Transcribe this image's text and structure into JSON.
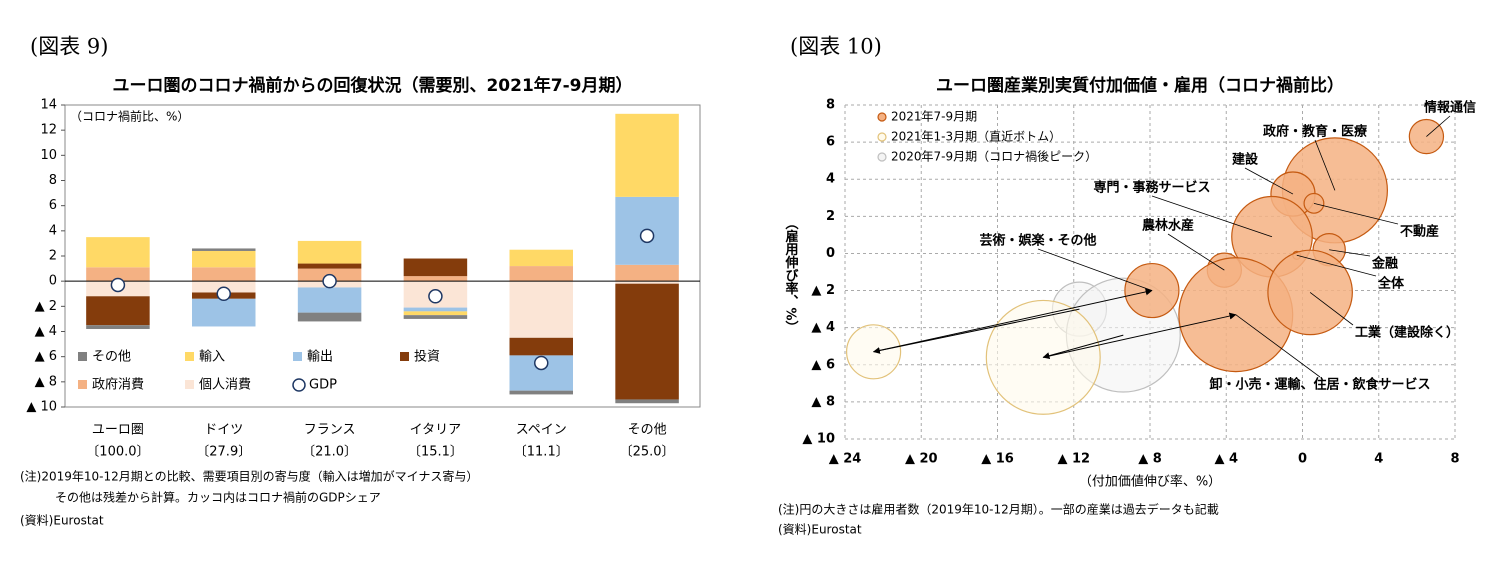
{
  "chart_data": [
    {
      "type": "bar",
      "stacked": true,
      "figure_label": "(図表 9)",
      "title": "ユーロ圏のコロナ禍前からの回復状況（需要別、2021年7-9月期）",
      "annotation": "（コロナ禍前比、%）",
      "categories": [
        "ユーロ圏",
        "ドイツ",
        "フランス",
        "イタリア",
        "スペイン",
        "その他"
      ],
      "gdp_shares": [
        "〔100.0〕",
        "〔27.9〕",
        "〔21.0〕",
        "〔15.1〕",
        "〔11.1〕",
        "〔25.0〕"
      ],
      "series": [
        {
          "name": "その他",
          "color": "#808080",
          "values": [
            -0.3,
            0.2,
            -0.7,
            -0.3,
            -0.3,
            -0.3
          ]
        },
        {
          "name": "輸入",
          "color": "#ffd966",
          "values": [
            2.4,
            1.3,
            1.8,
            -0.3,
            1.3,
            6.6
          ]
        },
        {
          "name": "輸出",
          "color": "#9dc3e6",
          "values": [
            0,
            -2.2,
            -2.0,
            -0.3,
            -2.8,
            5.4
          ]
        },
        {
          "name": "投資",
          "color": "#843c0c",
          "values": [
            -2.3,
            -0.5,
            0.4,
            1.4,
            -1.4,
            -9.2
          ]
        },
        {
          "name": "政府消費",
          "color": "#f4b183",
          "values": [
            1.1,
            1.1,
            1.0,
            0.4,
            1.2,
            1.3
          ]
        },
        {
          "name": "個人消費",
          "color": "#fbe5d6",
          "values": [
            -1.2,
            -0.9,
            -0.5,
            -2.1,
            -4.5,
            -0.2
          ]
        }
      ],
      "gdp": {
        "name": "GDP",
        "color": "#ffffff",
        "values": [
          -0.3,
          -1.0,
          0.0,
          -1.2,
          -6.5,
          3.6
        ]
      },
      "ylim": [
        -10,
        14
      ],
      "yticks": [
        {
          "value": -10,
          "label": "▲ 10"
        },
        {
          "value": -8,
          "label": "▲ 8"
        },
        {
          "value": -6,
          "label": "▲ 6"
        },
        {
          "value": -4,
          "label": "▲ 4"
        },
        {
          "value": -2,
          "label": "▲ 2"
        },
        0,
        2,
        4,
        6,
        8,
        10,
        12,
        14
      ],
      "grid": false,
      "notes": [
        "(注)2019年10-12月期との比較、需要項目別の寄与度（輸入は増加がマイナス寄与）",
        "その他は残差から計算。カッコ内はコロナ禍前のGDPシェア"
      ],
      "source": "(資料)Eurostat"
    },
    {
      "type": "bubble",
      "figure_label": "(図表 10)",
      "title": "ユーロ圏産業別実質付加価値・雇用（コロナ禍前比）",
      "xlabel": "（付加価値伸び率、%）",
      "ylabel": "（雇用伸び率、%）",
      "series": [
        {
          "name": "2021年7-9月期",
          "color": "#f4b183",
          "edgecolor": "#c55a11",
          "labels": [
            "情報通信",
            "政府・教育・医療",
            "建設",
            "不動産",
            "専門・事務サービス",
            "金融",
            "全体",
            "農林水産",
            "芸術・娯楽・その他",
            "卸・小売・運輸、住居・飲食サービス",
            "工業（建設除く）"
          ],
          "x": [
            6.5,
            1.7,
            -0.5,
            0.6,
            -1.6,
            1.4,
            -0.3,
            -4.1,
            -7.9,
            -3.5,
            0.4
          ],
          "y": [
            6.3,
            3.4,
            3.2,
            2.7,
            0.9,
            0.2,
            -0.1,
            -0.9,
            -2.0,
            -3.3,
            -2.1
          ],
          "sizes": [
            3.6,
            34,
            6,
            1.2,
            20,
            3.2,
            null,
            3.6,
            9,
            40,
            22
          ]
        },
        {
          "name": "2021年1-3月期（直近ボトム）",
          "color": "#fffaeb",
          "edgecolor": "#e2c27a",
          "x": [
            -22.5,
            -13.6
          ],
          "y": [
            -5.3,
            -5.6
          ],
          "sizes": [
            9,
            40
          ]
        },
        {
          "name": "2020年7-9月期（コロナ禍後ピーク）",
          "color": "#f4f4f4",
          "edgecolor": "#bfbfbf",
          "x": [
            -11.7,
            -9.4
          ],
          "y": [
            -3.0,
            -4.4
          ],
          "sizes": [
            9,
            40
          ]
        }
      ],
      "xlim": [
        -24,
        8
      ],
      "xticks": [
        {
          "value": -24,
          "label": "▲ 24"
        },
        {
          "value": -20,
          "label": "▲ 20"
        },
        {
          "value": -16,
          "label": "▲ 16"
        },
        {
          "value": -12,
          "label": "▲ 12"
        },
        {
          "value": -8,
          "label": "▲ 8"
        },
        {
          "value": -4,
          "label": "▲ 4"
        },
        0,
        4,
        8
      ],
      "ylim": [
        -10,
        8
      ],
      "yticks": [
        {
          "value": -10,
          "label": "▲ 10"
        },
        {
          "value": -8,
          "label": "▲ 8"
        },
        {
          "value": -6,
          "label": "▲ 6"
        },
        {
          "value": -4,
          "label": "▲ 4"
        },
        {
          "value": -2,
          "label": "▲ 2"
        },
        0,
        2,
        4,
        6,
        8
      ],
      "grid": true,
      "notes": [
        "(注)円の大きさは雇用者数（2019年10-12月期）。一部の産業は過去データも記載"
      ],
      "source": "(資料)Eurostat"
    }
  ]
}
